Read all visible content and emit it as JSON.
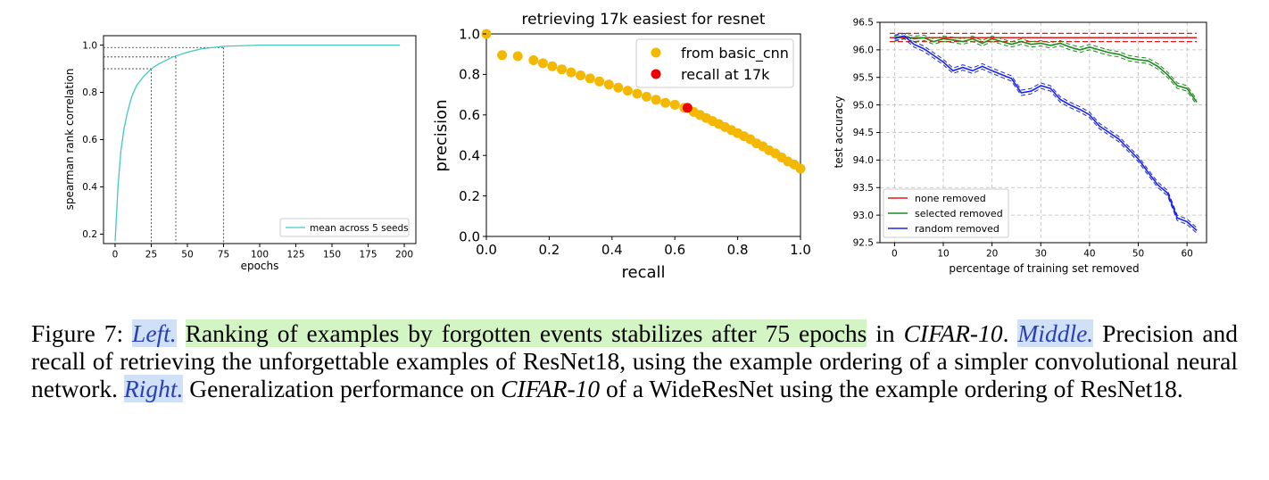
{
  "panels": [
    {
      "id": "left",
      "chart_data": {
        "type": "line",
        "title": "",
        "xlabel": "epochs",
        "ylabel": "spearman rank correlation",
        "xlim": [
          -8,
          208
        ],
        "ylim": [
          0.16,
          1.04
        ],
        "xticks": [
          0,
          25,
          50,
          75,
          100,
          125,
          150,
          175,
          200
        ],
        "yticks": [
          0.2,
          0.4,
          0.6,
          0.8,
          1.0
        ],
        "ytick_labels": [
          "0.2",
          "0.4",
          "0.6",
          "0.8",
          "1.0"
        ],
        "grid": false,
        "legend_position": "lower-right",
        "series": [
          {
            "name": "mean across 5 seeds",
            "color": "#40c9c2",
            "x": [
              0,
              2,
              4,
              6,
              8,
              10,
              12,
              15,
              20,
              25,
              30,
              40,
              50,
              60,
              75,
              90,
              100,
              125,
              150,
              175,
              197
            ],
            "y": [
              0.17,
              0.4,
              0.55,
              0.64,
              0.7,
              0.75,
              0.79,
              0.83,
              0.87,
              0.9,
              0.92,
              0.95,
              0.97,
              0.985,
              0.995,
              0.998,
              1.0,
              1.0,
              1.0,
              1.0,
              1.0
            ]
          }
        ],
        "reference_lines": [
          {
            "x": 25,
            "y": 0.9
          },
          {
            "x": 42,
            "y": 0.95
          },
          {
            "x": 75,
            "y": 0.99
          }
        ]
      }
    },
    {
      "id": "middle",
      "chart_data": {
        "type": "scatter",
        "title": "retrieving 17k easiest for resnet",
        "xlabel": "recall",
        "ylabel": "precision",
        "xlim": [
          0.0,
          1.0
        ],
        "ylim": [
          0.0,
          1.0
        ],
        "xticks": [
          0.0,
          0.2,
          0.4,
          0.6,
          0.8,
          1.0
        ],
        "xtick_labels": [
          "0.0",
          "0.2",
          "0.4",
          "0.6",
          "0.8",
          "1.0"
        ],
        "yticks": [
          0.0,
          0.2,
          0.4,
          0.6,
          0.8,
          1.0
        ],
        "ytick_labels": [
          "0.0",
          "0.2",
          "0.4",
          "0.6",
          "0.8",
          "1.0"
        ],
        "grid": false,
        "legend_position": "upper-right",
        "series": [
          {
            "name": "from basic_cnn",
            "color": "#f5b800",
            "x": [
              0.0,
              0.05,
              0.1,
              0.15,
              0.18,
              0.21,
              0.24,
              0.27,
              0.3,
              0.33,
              0.36,
              0.39,
              0.42,
              0.45,
              0.48,
              0.51,
              0.54,
              0.57,
              0.6,
              0.63,
              0.66,
              0.68,
              0.7,
              0.72,
              0.74,
              0.76,
              0.78,
              0.8,
              0.82,
              0.84,
              0.86,
              0.88,
              0.9,
              0.92,
              0.94,
              0.96,
              0.98,
              1.0
            ],
            "y": [
              1.0,
              0.895,
              0.89,
              0.87,
              0.855,
              0.84,
              0.825,
              0.81,
              0.795,
              0.78,
              0.765,
              0.75,
              0.735,
              0.72,
              0.705,
              0.69,
              0.675,
              0.66,
              0.65,
              0.635,
              0.615,
              0.6,
              0.585,
              0.57,
              0.555,
              0.54,
              0.525,
              0.51,
              0.495,
              0.48,
              0.46,
              0.445,
              0.425,
              0.41,
              0.39,
              0.37,
              0.355,
              0.335
            ]
          },
          {
            "name": "recall at 17k",
            "color": "#ee0000",
            "x": [
              0.64
            ],
            "y": [
              0.635
            ]
          }
        ]
      }
    },
    {
      "id": "right",
      "chart_data": {
        "type": "line",
        "title": "",
        "xlabel": "percentage of training set removed",
        "ylabel": "test accuracy",
        "xlim": [
          -3,
          64
        ],
        "ylim": [
          92.5,
          96.5
        ],
        "xticks": [
          0,
          10,
          20,
          30,
          40,
          50,
          60
        ],
        "yticks": [
          92.5,
          93.0,
          93.5,
          94.0,
          94.5,
          95.0,
          95.5,
          96.0,
          96.5
        ],
        "ytick_labels": [
          "92.5",
          "93.0",
          "93.5",
          "94.0",
          "94.5",
          "95.0",
          "95.5",
          "96.0",
          "96.5"
        ],
        "grid": true,
        "legend_position": "lower-left",
        "series": [
          {
            "name": "none removed",
            "color": "#e11b1b",
            "x": [
              -1,
              62
            ],
            "y": [
              96.22,
              96.22
            ],
            "band": [
              96.15,
              96.3
            ]
          },
          {
            "name": "selected removed",
            "color": "#1c8a1c",
            "x": [
              0,
              2,
              4,
              6,
              8,
              10,
              12,
              14,
              16,
              18,
              20,
              22,
              24,
              26,
              28,
              30,
              32,
              34,
              36,
              38,
              40,
              42,
              44,
              46,
              48,
              50,
              52,
              54,
              56,
              58,
              60,
              62
            ],
            "y": [
              96.2,
              96.25,
              96.2,
              96.22,
              96.15,
              96.2,
              96.18,
              96.15,
              96.2,
              96.12,
              96.2,
              96.15,
              96.1,
              96.15,
              96.1,
              96.12,
              96.08,
              96.12,
              96.05,
              96.0,
              96.05,
              96.0,
              95.95,
              95.92,
              95.85,
              95.82,
              95.8,
              95.7,
              95.55,
              95.35,
              95.3,
              95.05
            ]
          },
          {
            "name": "random removed",
            "color": "#1a26e6",
            "x": [
              0,
              2,
              4,
              6,
              8,
              10,
              12,
              14,
              16,
              18,
              20,
              22,
              24,
              26,
              28,
              30,
              32,
              34,
              36,
              38,
              40,
              42,
              44,
              46,
              48,
              50,
              52,
              54,
              56,
              58,
              60,
              62
            ],
            "y": [
              96.22,
              96.25,
              96.1,
              96.02,
              95.9,
              95.78,
              95.62,
              95.68,
              95.62,
              95.7,
              95.62,
              95.55,
              95.48,
              95.22,
              95.25,
              95.35,
              95.3,
              95.1,
              95.0,
              94.92,
              94.82,
              94.62,
              94.5,
              94.38,
              94.2,
              94.02,
              93.78,
              93.55,
              93.4,
              92.95,
              92.88,
              92.72
            ]
          }
        ]
      }
    }
  ],
  "caption": {
    "figure_label": "Figure 7:",
    "left_label": "Left.",
    "left_text": "Ranking of examples by forgotten events stabilizes after 75 epochs",
    "left_in": " in ",
    "dataset": "CIFAR-10",
    "period": ".",
    "middle_label": "Middle.",
    "middle_text": " Precision and recall of retrieving the unforgettable examples of ResNet18, using the example ordering of a simpler convolutional neural network. ",
    "right_label": "Right.",
    "right_text": " Generalization performance on ",
    "right_dataset": "CIFAR-10",
    "right_tail": " of a WideResNet using the example ordering of ResNet18."
  }
}
